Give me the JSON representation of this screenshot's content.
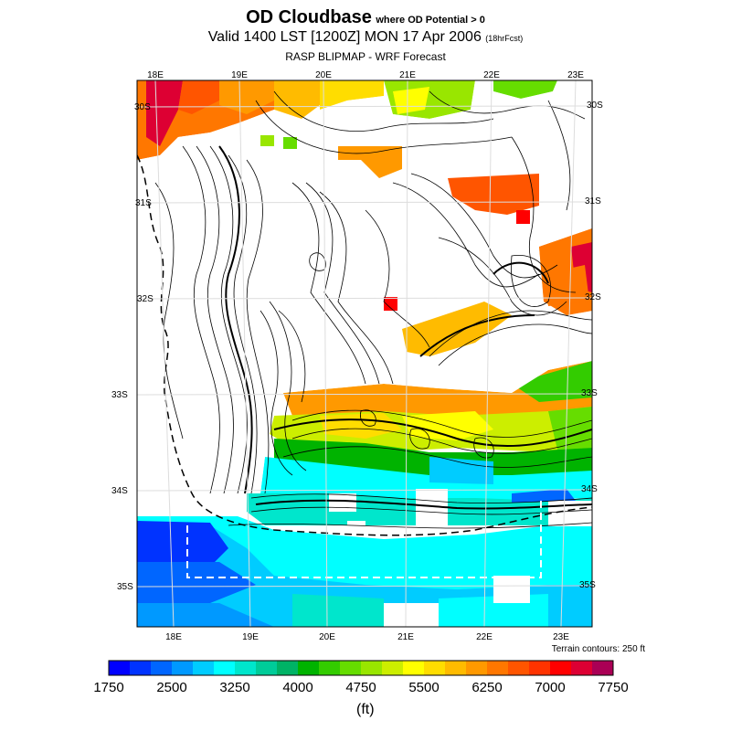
{
  "title": {
    "main": "OD Cloudbase",
    "qualifier": "where OD Potential > 0",
    "valid": "Valid 1400 LST [1200Z] MON 17 Apr 2006",
    "forecast": "(18hrFcst)",
    "source": "RASP BLIPMAP - WRF Forecast"
  },
  "top_lon_labels": [
    "18E",
    "19E",
    "20E",
    "21E",
    "22E",
    "23E"
  ],
  "bottom_lon_labels": [
    "18E",
    "19E",
    "20E",
    "21E",
    "22E",
    "23E"
  ],
  "left_lat_labels": [
    "30S",
    "31S",
    "32S",
    "33S",
    "34S",
    "35S"
  ],
  "right_lat_labels": [
    "30S",
    "31S",
    "32S",
    "33S",
    "34S",
    "35S"
  ],
  "terrain_note": "Terrain contours: 250 ft",
  "units": "(ft)",
  "colorbar": {
    "labels": [
      "1750",
      "2500",
      "3250",
      "4000",
      "4750",
      "5500",
      "6250",
      "7000",
      "7750"
    ],
    "colors": [
      "#0000ff",
      "#0033ff",
      "#0066ff",
      "#0099ff",
      "#00ccff",
      "#00ffff",
      "#00e6cc",
      "#00cc99",
      "#00b366",
      "#00b300",
      "#33cc00",
      "#66dd00",
      "#99e600",
      "#ccee00",
      "#ffff00",
      "#ffdd00",
      "#ffbb00",
      "#ff9900",
      "#ff7700",
      "#ff5500",
      "#ff3300",
      "#ff0000",
      "#dd0033",
      "#aa0055"
    ]
  }
}
